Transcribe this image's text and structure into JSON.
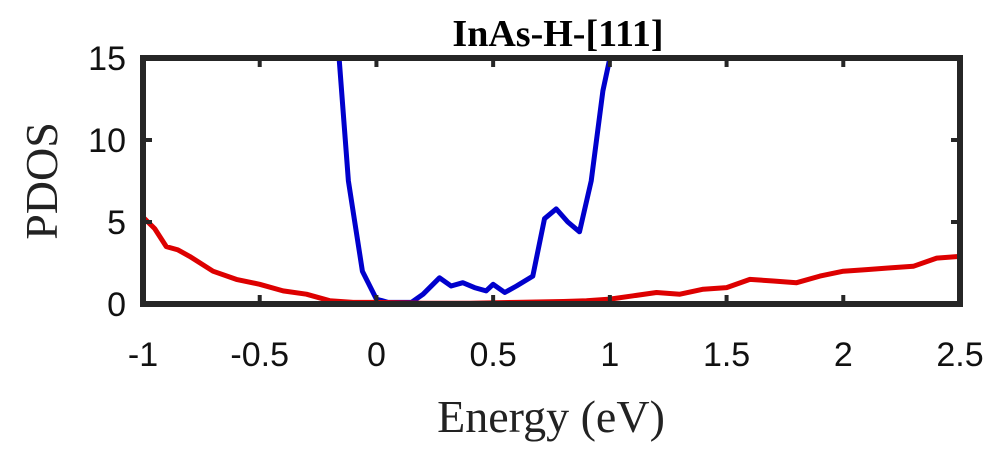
{
  "chart_data": {
    "type": "line",
    "title": "InAs-H-[111]",
    "xlabel": "Energy (eV)",
    "ylabel": "PDOS",
    "xlim": [
      -1,
      2.5
    ],
    "ylim": [
      0,
      15
    ],
    "grid": false,
    "x_ticks": [
      {
        "value": -1,
        "label": "-1"
      },
      {
        "value": -0.5,
        "label": "-0.5"
      },
      {
        "value": 0,
        "label": "0"
      },
      {
        "value": 0.5,
        "label": "0.5"
      },
      {
        "value": 1,
        "label": "1"
      },
      {
        "value": 1.5,
        "label": "1.5"
      },
      {
        "value": 2,
        "label": "2"
      },
      {
        "value": 2.5,
        "label": "2.5"
      }
    ],
    "y_ticks": [
      {
        "value": 0,
        "label": "0"
      },
      {
        "value": 5,
        "label": "5"
      },
      {
        "value": 10,
        "label": "10"
      },
      {
        "value": 15,
        "label": "15"
      }
    ],
    "series": [
      {
        "color": "#0000cc",
        "points": [
          [
            -0.16,
            15.0
          ],
          [
            -0.12,
            7.5
          ],
          [
            -0.06,
            2.0
          ],
          [
            0.0,
            0.3
          ],
          [
            0.05,
            0.1
          ],
          [
            0.15,
            0.1
          ],
          [
            0.2,
            0.6
          ],
          [
            0.27,
            1.6
          ],
          [
            0.32,
            1.1
          ],
          [
            0.37,
            1.3
          ],
          [
            0.42,
            1.0
          ],
          [
            0.47,
            0.8
          ],
          [
            0.5,
            1.2
          ],
          [
            0.55,
            0.7
          ],
          [
            0.6,
            1.1
          ],
          [
            0.67,
            1.7
          ],
          [
            0.72,
            5.2
          ],
          [
            0.77,
            5.8
          ],
          [
            0.82,
            5.0
          ],
          [
            0.87,
            4.4
          ],
          [
            0.92,
            7.5
          ],
          [
            0.97,
            13.0
          ],
          [
            1.0,
            15.0
          ]
        ]
      },
      {
        "color": "#dd0000",
        "points": [
          [
            -1.0,
            5.3
          ],
          [
            -0.95,
            4.6
          ],
          [
            -0.9,
            3.5
          ],
          [
            -0.85,
            3.3
          ],
          [
            -0.8,
            2.9
          ],
          [
            -0.7,
            2.0
          ],
          [
            -0.6,
            1.5
          ],
          [
            -0.5,
            1.2
          ],
          [
            -0.4,
            0.8
          ],
          [
            -0.3,
            0.6
          ],
          [
            -0.2,
            0.2
          ],
          [
            -0.1,
            0.1
          ],
          [
            0.0,
            0.1
          ],
          [
            0.2,
            0.05
          ],
          [
            0.4,
            0.05
          ],
          [
            0.6,
            0.1
          ],
          [
            0.8,
            0.15
          ],
          [
            0.9,
            0.2
          ],
          [
            1.0,
            0.3
          ],
          [
            1.1,
            0.5
          ],
          [
            1.2,
            0.7
          ],
          [
            1.3,
            0.6
          ],
          [
            1.4,
            0.9
          ],
          [
            1.5,
            1.0
          ],
          [
            1.6,
            1.5
          ],
          [
            1.7,
            1.4
          ],
          [
            1.8,
            1.3
          ],
          [
            1.9,
            1.7
          ],
          [
            2.0,
            2.0
          ],
          [
            2.1,
            2.1
          ],
          [
            2.2,
            2.2
          ],
          [
            2.3,
            2.3
          ],
          [
            2.4,
            2.8
          ],
          [
            2.5,
            2.9
          ]
        ]
      }
    ]
  }
}
